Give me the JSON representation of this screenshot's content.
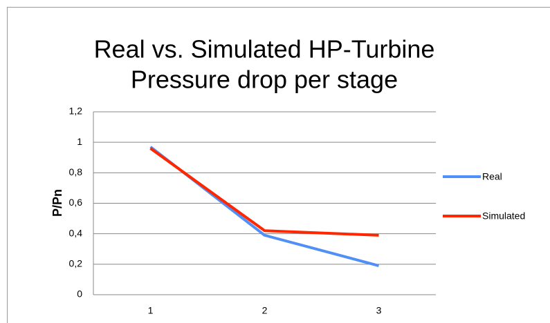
{
  "chart_data": {
    "type": "line",
    "title": [
      "Real vs. Simulated HP-Turbine",
      "Pressure drop per stage"
    ],
    "y_label": "P/Pn",
    "categories": [
      "1",
      "2",
      "3"
    ],
    "series": [
      {
        "name": "Real",
        "color": "#4f8ff7",
        "values": [
          0.97,
          0.39,
          0.19
        ]
      },
      {
        "name": "Simulated",
        "color": "#ff2600",
        "values": [
          0.96,
          0.42,
          0.39
        ]
      }
    ],
    "ylim": [
      0,
      1.2
    ],
    "yticks": [
      0,
      {
        "value": 0.2,
        "label": "0,2"
      },
      {
        "value": 0.4,
        "label": "0,4"
      },
      {
        "value": 0.6,
        "label": "0,6"
      },
      {
        "value": 0.8,
        "label": "0,8"
      },
      1,
      {
        "value": 1.2,
        "label": "1,2"
      }
    ],
    "grid": true,
    "legend": "right"
  }
}
